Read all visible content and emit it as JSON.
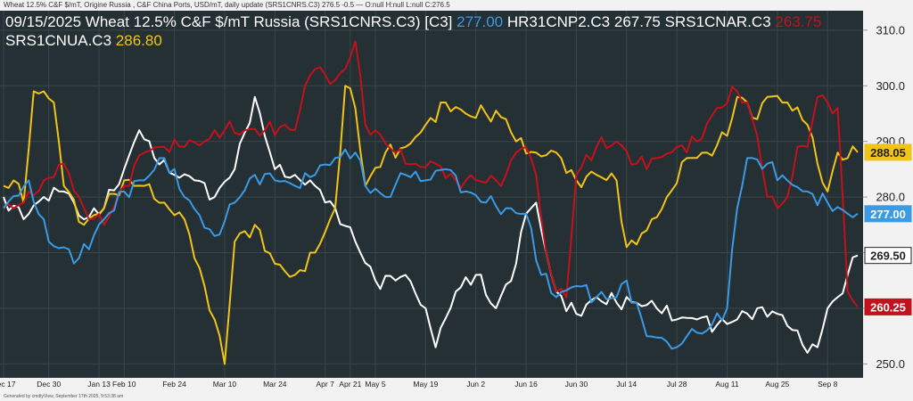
{
  "topbar": {
    "text": "Wheat 12.5%  C&F $/mT, Origine Russia , C&F China Ports, USD/mT, daily update (SRS1CNRS.C3) 276.5 -0.5 — O:null H:null L:null C:276.5"
  },
  "footer": {
    "text": "Generated by cmdtyView, September 17th 2025, 9:53:38 am"
  },
  "header": {
    "prefix": "09/15/2025 Wheat 12.5% C&F $/mT Russia (SRS1CNRS.C3) [C3]",
    "s1_value": "277.00",
    "s2_name": "HR31CNP2.C3",
    "s2_value": "267.75",
    "s3_name": "SRS1CNAR.C3",
    "s3_value": "263.75",
    "s4_name": "SRS1CNUA.C3",
    "s4_value": "286.80"
  },
  "colors": {
    "blue": "#3a9ae6",
    "white": "#ffffff",
    "red": "#c4111b",
    "yellow": "#f2c418",
    "background": "#253035",
    "axis_bg": "#f2f2f2"
  },
  "chart_data": {
    "type": "line",
    "x_labels": [
      {
        "label": "Dec 17",
        "i": 0
      },
      {
        "label": "Dec 30",
        "i": 9
      },
      {
        "label": "Jan 13",
        "i": 19
      },
      {
        "label": "Feb 10",
        "i": 24
      },
      {
        "label": "Feb 24",
        "i": 34
      },
      {
        "label": "Mar 10",
        "i": 44
      },
      {
        "label": "Mar 24",
        "i": 54
      },
      {
        "label": "Apr 7",
        "i": 64
      },
      {
        "label": "Apr 21",
        "i": 69
      },
      {
        "label": "May 5",
        "i": 74
      },
      {
        "label": "May 19",
        "i": 84
      },
      {
        "label": "Jun 2",
        "i": 94
      },
      {
        "label": "Jun 16",
        "i": 104
      },
      {
        "label": "Jun 30",
        "i": 114
      },
      {
        "label": "Jul 14",
        "i": 124
      },
      {
        "label": "Jul 28",
        "i": 134
      },
      {
        "label": "Aug 11",
        "i": 144
      },
      {
        "label": "Aug 25",
        "i": 154
      },
      {
        "label": "Sep 8",
        "i": 164
      }
    ],
    "y_ticks": [
      250,
      260,
      270,
      280,
      290,
      300,
      310
    ],
    "ylim": [
      247.5,
      313.5
    ],
    "n_points": 171,
    "series": [
      {
        "name": "SRS1CNRS.C3",
        "color": "#3a9ae6",
        "last": "277.00",
        "keys": [
          [
            0,
            278
          ],
          [
            5,
            283
          ],
          [
            9,
            272
          ],
          [
            15,
            269
          ],
          [
            20,
            276
          ],
          [
            24,
            281
          ],
          [
            28,
            283
          ],
          [
            32,
            287
          ],
          [
            36,
            280
          ],
          [
            42,
            273
          ],
          [
            46,
            279
          ],
          [
            50,
            284
          ],
          [
            54,
            283
          ],
          [
            58,
            282
          ],
          [
            62,
            284
          ],
          [
            66,
            287
          ],
          [
            70,
            288
          ],
          [
            72,
            282
          ],
          [
            76,
            280
          ],
          [
            80,
            284
          ],
          [
            84,
            283
          ],
          [
            88,
            285
          ],
          [
            92,
            281
          ],
          [
            96,
            279
          ],
          [
            100,
            278
          ],
          [
            104,
            277
          ],
          [
            107,
            266
          ],
          [
            110,
            262
          ],
          [
            114,
            264
          ],
          [
            118,
            262
          ],
          [
            122,
            262
          ],
          [
            124,
            265
          ],
          [
            128,
            255
          ],
          [
            132,
            254
          ],
          [
            134,
            253
          ],
          [
            136,
            255
          ],
          [
            140,
            256
          ],
          [
            144,
            260
          ],
          [
            146,
            278
          ],
          [
            148,
            287
          ],
          [
            152,
            286
          ],
          [
            156,
            283
          ],
          [
            160,
            281
          ],
          [
            164,
            279
          ],
          [
            168,
            277
          ],
          [
            170,
            277
          ]
        ]
      },
      {
        "name": "HR31CNP2.C3",
        "color": "#ffffff",
        "last": "269.50",
        "keys": [
          [
            0,
            280
          ],
          [
            4,
            276
          ],
          [
            8,
            280
          ],
          [
            12,
            281
          ],
          [
            16,
            276
          ],
          [
            20,
            278
          ],
          [
            24,
            285
          ],
          [
            27,
            292
          ],
          [
            30,
            287
          ],
          [
            34,
            284
          ],
          [
            38,
            283
          ],
          [
            42,
            280
          ],
          [
            46,
            285
          ],
          [
            50,
            298
          ],
          [
            54,
            285
          ],
          [
            58,
            284
          ],
          [
            62,
            282
          ],
          [
            66,
            278
          ],
          [
            70,
            272
          ],
          [
            74,
            265
          ],
          [
            78,
            265
          ],
          [
            80,
            266
          ],
          [
            84,
            260
          ],
          [
            86,
            253
          ],
          [
            90,
            263
          ],
          [
            94,
            266
          ],
          [
            98,
            260
          ],
          [
            102,
            268
          ],
          [
            104,
            277
          ],
          [
            106,
            279
          ],
          [
            108,
            270
          ],
          [
            110,
            263
          ],
          [
            114,
            259
          ],
          [
            118,
            262
          ],
          [
            122,
            261
          ],
          [
            126,
            261
          ],
          [
            130,
            260
          ],
          [
            134,
            258
          ],
          [
            138,
            258
          ],
          [
            142,
            257
          ],
          [
            146,
            258
          ],
          [
            150,
            260
          ],
          [
            154,
            259
          ],
          [
            158,
            256
          ],
          [
            160,
            252
          ],
          [
            162,
            253
          ],
          [
            164,
            260
          ],
          [
            166,
            262
          ],
          [
            168,
            266
          ],
          [
            170,
            269.5
          ]
        ]
      },
      {
        "name": "SRS1CNAR.C3",
        "color": "#c4111b",
        "last": "260.25",
        "keys": [
          [
            0,
            278
          ],
          [
            4,
            279
          ],
          [
            8,
            283
          ],
          [
            12,
            286
          ],
          [
            16,
            278
          ],
          [
            20,
            275
          ],
          [
            24,
            282
          ],
          [
            28,
            288
          ],
          [
            32,
            289
          ],
          [
            36,
            289
          ],
          [
            40,
            290
          ],
          [
            44,
            292
          ],
          [
            48,
            292
          ],
          [
            52,
            292
          ],
          [
            56,
            293
          ],
          [
            58,
            292
          ],
          [
            60,
            300
          ],
          [
            62,
            303
          ],
          [
            64,
            302
          ],
          [
            66,
            301
          ],
          [
            68,
            303
          ],
          [
            70,
            308
          ],
          [
            72,
            293
          ],
          [
            74,
            292
          ],
          [
            78,
            288
          ],
          [
            82,
            286
          ],
          [
            86,
            286
          ],
          [
            90,
            283
          ],
          [
            94,
            283
          ],
          [
            98,
            283
          ],
          [
            100,
            284
          ],
          [
            102,
            288
          ],
          [
            104,
            289
          ],
          [
            106,
            284
          ],
          [
            108,
            270
          ],
          [
            110,
            263
          ],
          [
            112,
            262
          ],
          [
            114,
            284
          ],
          [
            118,
            289
          ],
          [
            122,
            290
          ],
          [
            126,
            286
          ],
          [
            130,
            287
          ],
          [
            134,
            289
          ],
          [
            138,
            290
          ],
          [
            142,
            296
          ],
          [
            146,
            299
          ],
          [
            148,
            297
          ],
          [
            150,
            291
          ],
          [
            152,
            280
          ],
          [
            154,
            278
          ],
          [
            156,
            280
          ],
          [
            158,
            289
          ],
          [
            160,
            289
          ],
          [
            162,
            298
          ],
          [
            164,
            297
          ],
          [
            166,
            296
          ],
          [
            168,
            263
          ],
          [
            170,
            260.25
          ]
        ]
      },
      {
        "name": "SRS1CNUA.C3",
        "color": "#f2c418",
        "last": "288.05",
        "keys": [
          [
            0,
            282
          ],
          [
            2,
            283
          ],
          [
            4,
            279
          ],
          [
            6,
            299
          ],
          [
            8,
            299
          ],
          [
            10,
            297
          ],
          [
            12,
            282
          ],
          [
            16,
            275
          ],
          [
            20,
            278
          ],
          [
            24,
            283
          ],
          [
            28,
            282
          ],
          [
            32,
            279
          ],
          [
            36,
            276
          ],
          [
            40,
            264
          ],
          [
            42,
            258
          ],
          [
            44,
            250
          ],
          [
            46,
            272
          ],
          [
            50,
            275
          ],
          [
            54,
            268
          ],
          [
            58,
            266
          ],
          [
            62,
            270
          ],
          [
            66,
            278
          ],
          [
            68,
            300
          ],
          [
            70,
            296
          ],
          [
            72,
            282
          ],
          [
            76,
            288
          ],
          [
            80,
            289
          ],
          [
            84,
            293
          ],
          [
            88,
            297
          ],
          [
            92,
            295
          ],
          [
            96,
            295
          ],
          [
            100,
            294
          ],
          [
            102,
            290
          ],
          [
            106,
            288
          ],
          [
            110,
            288
          ],
          [
            114,
            283
          ],
          [
            118,
            284
          ],
          [
            122,
            283
          ],
          [
            124,
            271
          ],
          [
            128,
            274
          ],
          [
            132,
            280
          ],
          [
            136,
            287
          ],
          [
            140,
            288
          ],
          [
            144,
            291
          ],
          [
            146,
            298
          ],
          [
            148,
            297
          ],
          [
            150,
            294
          ],
          [
            152,
            298
          ],
          [
            156,
            297
          ],
          [
            160,
            293
          ],
          [
            162,
            286
          ],
          [
            164,
            281
          ],
          [
            166,
            288
          ],
          [
            168,
            287
          ],
          [
            170,
            288.05
          ]
        ]
      }
    ]
  }
}
